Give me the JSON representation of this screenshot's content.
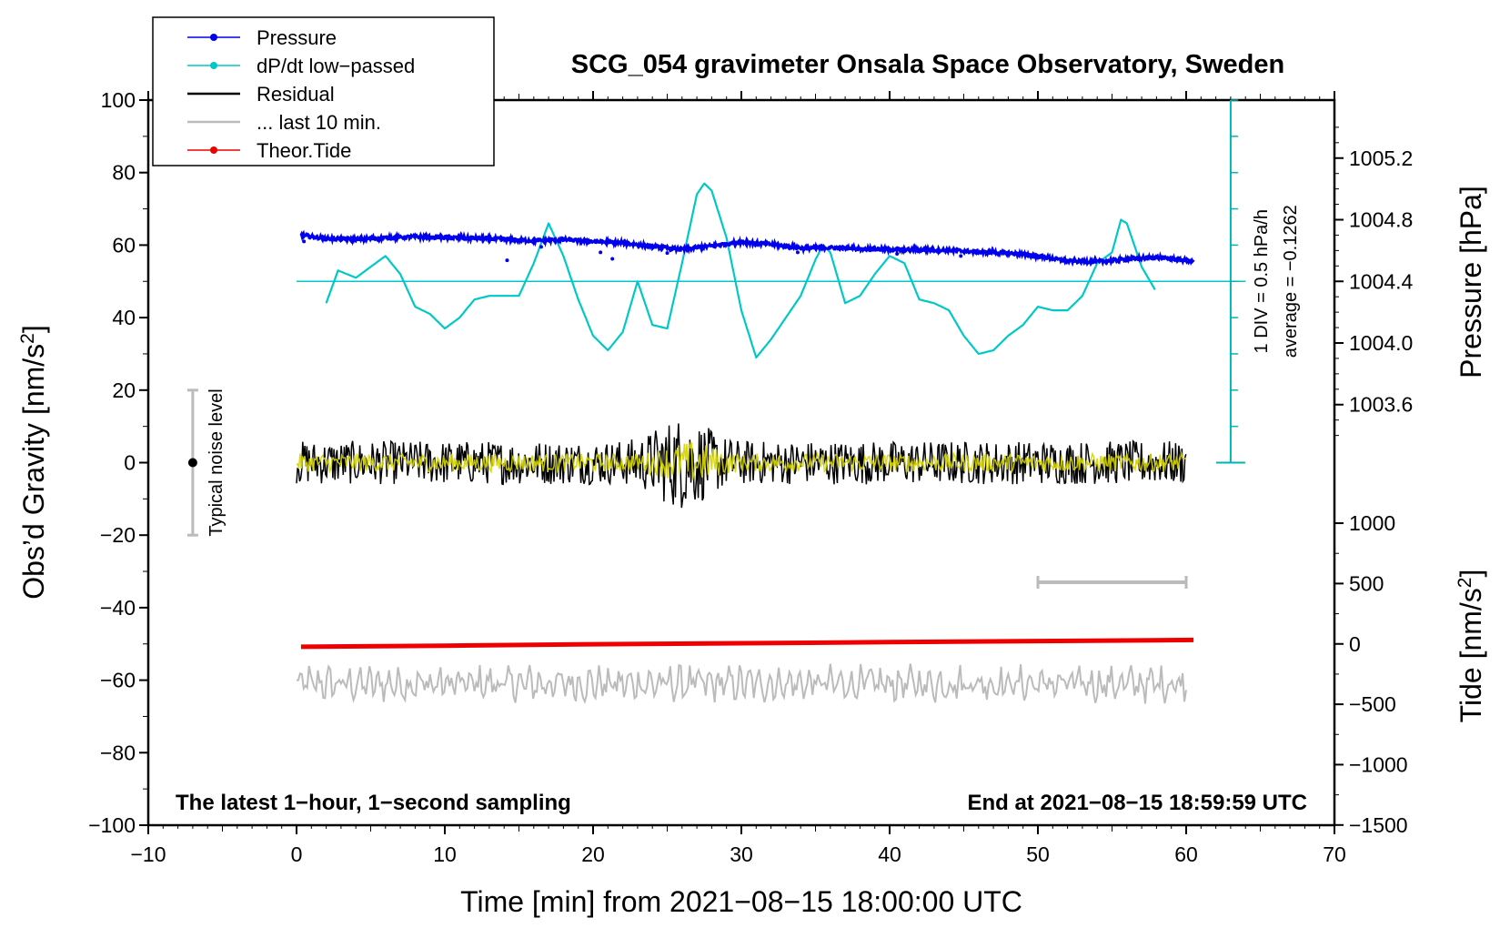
{
  "chart_data": {
    "type": "line",
    "title": "SCG_054 gravimeter Onsala Space Observatory, Sweden",
    "xlabel": "Time [min] from 2021−08−15 18:00:00 UTC",
    "ylabel_left": "Obs’d Gravity [nm/s",
    "ylabel_left_sup": "2",
    "ylabel_left_end": "]",
    "ylabel_right_top": "Pressure [hPa]",
    "ylabel_right_bottom": "Tide [nm/s",
    "ylabel_right_bottom_sup": "2",
    "ylabel_right_bottom_end": "]",
    "xlim": [
      -10,
      70
    ],
    "ylim_left": [
      -100,
      100
    ],
    "x_ticks": [
      -10,
      0,
      10,
      20,
      30,
      40,
      50,
      60,
      70
    ],
    "x_tick_labels": [
      "−10",
      "0",
      "10",
      "20",
      "30",
      "40",
      "50",
      "60",
      "70"
    ],
    "y_ticks": [
      -100,
      -80,
      -60,
      -40,
      -20,
      0,
      20,
      40,
      60,
      80,
      100
    ],
    "y_tick_labels": [
      "−100",
      "−80",
      "−60",
      "−40",
      "−20",
      "0",
      "20",
      "40",
      "60",
      "80",
      "100"
    ],
    "pressure_axis": {
      "ticks": [
        1003.6,
        1004.0,
        1004.4,
        1004.8,
        1005.2
      ],
      "tick_labels": [
        "1003.6",
        "1004.0",
        "1004.4",
        "1004.8",
        "1005.2"
      ],
      "map_gravity_at_1004_4": 50,
      "gravity_per_hpa": 42.5
    },
    "tide_axis": {
      "ticks": [
        -1500,
        -1000,
        -500,
        0,
        500,
        1000
      ],
      "tick_labels": [
        "−1500",
        "−1000",
        "−500",
        "0",
        "500",
        "1000"
      ],
      "map_gravity_at_zero": -50,
      "gravity_per_unit": 0.0333
    },
    "legend": {
      "placement": "top-left",
      "entries": [
        {
          "name": "Pressure",
          "color": "#0000ee",
          "marker": true
        },
        {
          "name": "dP/dt low−passed",
          "color": "#00c8c8",
          "marker": true
        },
        {
          "name": "Residual",
          "color": "#000000",
          "marker": false
        },
        {
          "name": "... last 10 min.",
          "color": "#bbbbbb",
          "marker": false
        },
        {
          "name": "Theor.Tide",
          "color": "#ee0000",
          "marker": true
        }
      ]
    },
    "series": [
      {
        "name": "Pressure",
        "color": "#0000ee",
        "x": [
          0.3,
          1,
          2,
          4,
          6,
          8,
          10,
          12,
          14,
          16,
          18,
          20,
          22,
          24,
          26,
          28,
          30,
          32,
          34,
          36,
          38,
          40,
          42,
          44,
          46,
          48,
          50,
          52,
          54,
          56,
          58,
          60.5
        ],
        "y": [
          62.8,
          62.3,
          61.8,
          61.6,
          62.0,
          62.3,
          62.1,
          61.9,
          61.6,
          61.2,
          61.5,
          61.0,
          60.6,
          59.6,
          58.8,
          59.8,
          60.9,
          60.2,
          59.2,
          59.3,
          59.0,
          58.8,
          58.7,
          58.6,
          58.1,
          57.8,
          57.0,
          55.6,
          55.4,
          56.1,
          56.6,
          55.6
        ]
      },
      {
        "name": "dP/dt low−passed",
        "color": "#00c8c8",
        "x": [
          2,
          2.8,
          4,
          5,
          6,
          7,
          8,
          9,
          10,
          11,
          12,
          13,
          14,
          15,
          16,
          17,
          18,
          19,
          20,
          21,
          22,
          23,
          24,
          25,
          26,
          27,
          27.5,
          28,
          29,
          30,
          31,
          32,
          33,
          34,
          35,
          35.5,
          36,
          37,
          38,
          39,
          40,
          41,
          42,
          43,
          44,
          45,
          46,
          47,
          48,
          49,
          50,
          51,
          52,
          53,
          54,
          55,
          55.6,
          56,
          57,
          58
        ],
        "y": [
          44,
          53,
          51,
          54,
          57,
          52,
          43,
          41,
          37,
          40,
          45,
          46,
          46,
          46,
          55,
          66,
          57,
          45,
          35,
          31,
          36,
          50,
          38,
          37,
          55,
          74,
          77,
          75,
          62,
          42,
          29,
          34,
          40,
          46,
          56,
          60,
          58,
          44,
          46,
          52,
          57,
          55,
          45,
          44,
          42,
          35,
          30,
          31,
          35,
          38,
          43,
          42,
          42,
          46,
          55,
          58,
          67,
          66,
          54,
          47
        ]
      },
      {
        "name": "Residual",
        "color": "#000000",
        "x_range": [
          0,
          60
        ],
        "amplitude_typical": 6,
        "burst_center_min": 26,
        "burst_amplitude": 13,
        "offset": 0
      },
      {
        "name": "Residual (yellow overlay)",
        "color": "#d4d400",
        "x_range": [
          0,
          60
        ],
        "amplitude_typical": 2.5,
        "offset": 0
      },
      {
        "name": "... last 10 min.",
        "color": "#bbbbbb",
        "x_range": [
          0,
          60
        ],
        "offset": -61,
        "amplitude_typical": 4
      },
      {
        "name": "Theor.Tide",
        "color": "#ee0000",
        "x": [
          0.3,
          10,
          20,
          30,
          40,
          50,
          60.5
        ],
        "y": [
          -50.8,
          -50.5,
          -50.1,
          -49.8,
          -49.5,
          -49.2,
          -48.9
        ]
      }
    ],
    "annotations": {
      "noise_level_label": "Typical noise level",
      "noise_level_x": -7,
      "noise_level_range": [
        -20,
        20
      ],
      "dpdt_scale_label": "1 DIV = 0.5 hPa/h",
      "dpdt_average_label": "average = −0.1262",
      "dpdt_scale_x": 63,
      "dpdt_scale_range": [
        0,
        100
      ],
      "dpdt_zero_line_y": 50,
      "window_bar_x": [
        50,
        60
      ],
      "window_bar_y": -33,
      "footer_left": "The latest 1−hour, 1−second sampling",
      "footer_right": "End at 2021−08−15 18:59:59 UTC"
    }
  }
}
